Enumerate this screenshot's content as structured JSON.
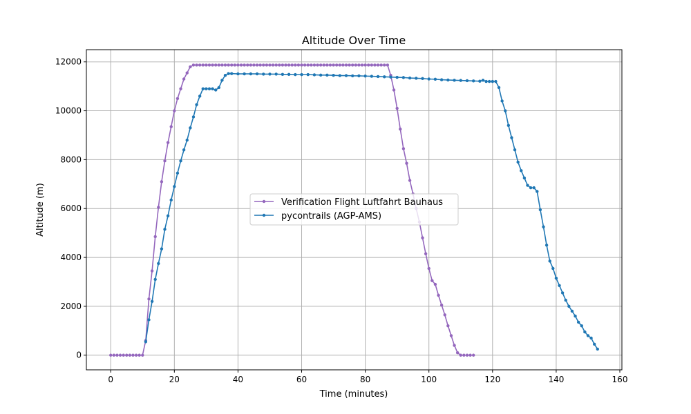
{
  "chart_data": {
    "type": "line",
    "title": "Altitude Over Time",
    "xlabel": "Time (minutes)",
    "ylabel": "Altitude (m)",
    "xlim": [
      -7.65,
      160.65
    ],
    "ylim": [
      -600,
      12500
    ],
    "xticks": [
      0,
      20,
      40,
      60,
      80,
      100,
      120,
      140,
      160
    ],
    "yticks": [
      0,
      2000,
      4000,
      6000,
      8000,
      10000,
      12000
    ],
    "grid": true,
    "legend_position": "center",
    "series": [
      {
        "name": "Verification Flight Luftfahrt Bauhaus",
        "color": "#9467bd",
        "marker": "circle",
        "x": [
          0,
          1,
          2,
          3,
          4,
          5,
          6,
          7,
          8,
          9,
          10,
          11,
          12,
          13,
          14,
          15,
          16,
          17,
          18,
          19,
          20,
          21,
          22,
          23,
          24,
          25,
          26,
          27,
          28,
          29,
          30,
          31,
          32,
          33,
          34,
          35,
          36,
          37,
          38,
          39,
          40,
          41,
          42,
          43,
          44,
          45,
          46,
          47,
          48,
          49,
          50,
          51,
          52,
          53,
          54,
          55,
          56,
          57,
          58,
          59,
          60,
          61,
          62,
          63,
          64,
          65,
          66,
          67,
          68,
          69,
          70,
          71,
          72,
          73,
          74,
          75,
          76,
          77,
          78,
          79,
          80,
          81,
          82,
          83,
          84,
          85,
          86,
          87,
          88,
          89,
          90,
          91,
          92,
          93,
          94,
          95,
          96,
          97,
          98,
          99,
          100,
          101,
          102,
          103,
          104,
          105,
          106,
          107,
          108,
          109,
          110,
          111,
          112,
          113,
          114
        ],
        "y": [
          0,
          0,
          0,
          0,
          0,
          0,
          0,
          0,
          0,
          0,
          0,
          600,
          2300,
          3450,
          4850,
          6050,
          7100,
          7950,
          8700,
          9350,
          10000,
          10500,
          10900,
          11300,
          11550,
          11800,
          11870,
          11870,
          11870,
          11870,
          11870,
          11870,
          11870,
          11870,
          11870,
          11870,
          11870,
          11870,
          11870,
          11870,
          11870,
          11870,
          11870,
          11870,
          11870,
          11870,
          11870,
          11870,
          11870,
          11870,
          11870,
          11870,
          11870,
          11870,
          11870,
          11870,
          11870,
          11870,
          11870,
          11870,
          11870,
          11870,
          11870,
          11870,
          11870,
          11870,
          11870,
          11870,
          11870,
          11870,
          11870,
          11870,
          11870,
          11870,
          11870,
          11870,
          11870,
          11870,
          11870,
          11870,
          11870,
          11870,
          11870,
          11870,
          11870,
          11870,
          11870,
          11870,
          11450,
          10850,
          10100,
          9250,
          8450,
          7850,
          7150,
          6600,
          6000,
          5450,
          4800,
          4150,
          3550,
          3050,
          2900,
          2450,
          2050,
          1650,
          1200,
          800,
          400,
          100,
          0,
          0,
          0,
          0,
          0
        ]
      },
      {
        "name": "pycontrails (AGP-AMS)",
        "color": "#1f77b4",
        "marker": "circle",
        "x": [
          11,
          12,
          13,
          14,
          15,
          16,
          17,
          18,
          19,
          20,
          21,
          22,
          23,
          24,
          25,
          26,
          27,
          28,
          29,
          30,
          31,
          32,
          33,
          34,
          35,
          36,
          37,
          38,
          40,
          42,
          44,
          46,
          48,
          50,
          52,
          54,
          56,
          58,
          60,
          62,
          64,
          66,
          68,
          70,
          72,
          74,
          76,
          78,
          80,
          82,
          84,
          86,
          88,
          90,
          92,
          94,
          96,
          98,
          100,
          102,
          104,
          106,
          108,
          110,
          112,
          114,
          116,
          117,
          118,
          119,
          120,
          121,
          122,
          123,
          124,
          125,
          126,
          127,
          128,
          129,
          130,
          131,
          132,
          133,
          134,
          135,
          136,
          137,
          138,
          139,
          140,
          141,
          142,
          143,
          144,
          145,
          146,
          147,
          148,
          149,
          150,
          151,
          152,
          153
        ],
        "y": [
          550,
          1450,
          2200,
          3100,
          3750,
          4350,
          5150,
          5700,
          6350,
          6900,
          7450,
          7950,
          8400,
          8800,
          9300,
          9750,
          10250,
          10600,
          10900,
          10900,
          10900,
          10900,
          10850,
          10950,
          11250,
          11450,
          11520,
          11520,
          11510,
          11510,
          11510,
          11510,
          11500,
          11500,
          11500,
          11490,
          11490,
          11480,
          11480,
          11480,
          11470,
          11460,
          11460,
          11450,
          11440,
          11440,
          11430,
          11430,
          11420,
          11410,
          11400,
          11390,
          11380,
          11370,
          11360,
          11340,
          11330,
          11320,
          11300,
          11290,
          11270,
          11260,
          11250,
          11240,
          11230,
          11220,
          11210,
          11250,
          11200,
          11200,
          11200,
          11200,
          10950,
          10400,
          10000,
          9400,
          8900,
          8400,
          7900,
          7550,
          7250,
          6950,
          6850,
          6850,
          6700,
          5950,
          5250,
          4500,
          3850,
          3550,
          3150,
          2850,
          2550,
          2250,
          2000,
          1800,
          1600,
          1350,
          1200,
          950,
          800,
          700,
          450,
          250
        ]
      }
    ]
  }
}
